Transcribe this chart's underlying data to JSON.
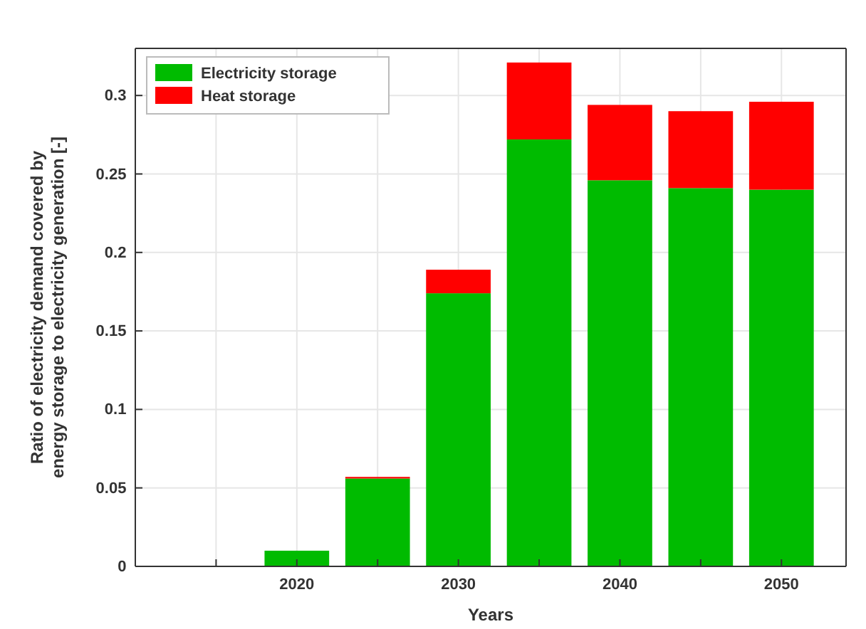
{
  "chart_data": {
    "type": "bar",
    "stacked": true,
    "xlabel": "Years",
    "ylabel": "Ratio of electricity demand covered by energy storage to electricity generation [-]",
    "x": [
      2020,
      2025,
      2030,
      2035,
      2040,
      2045,
      2050
    ],
    "series": [
      {
        "name": "Electricity storage",
        "color": "#00bb00",
        "values": [
          0.01,
          0.056,
          0.174,
          0.272,
          0.246,
          0.241,
          0.24
        ]
      },
      {
        "name": "Heat storage",
        "color": "#ff0000",
        "values": [
          0,
          0.001,
          0.015,
          0.049,
          0.048,
          0.049,
          0.056
        ]
      }
    ],
    "xlim": [
      2010,
      2054
    ],
    "xticks": [
      {
        "value": 2015,
        "label": null
      },
      2020,
      {
        "value": 2025,
        "label": null
      },
      2030,
      {
        "value": 2035,
        "label": null
      },
      2040,
      {
        "value": 2045,
        "label": null
      },
      2050
    ],
    "ylim": [
      0,
      0.33
    ],
    "yticks": [
      0,
      0.05,
      0.1,
      0.15,
      0.2,
      0.25,
      0.3
    ],
    "grid": true,
    "legend": "top left"
  }
}
